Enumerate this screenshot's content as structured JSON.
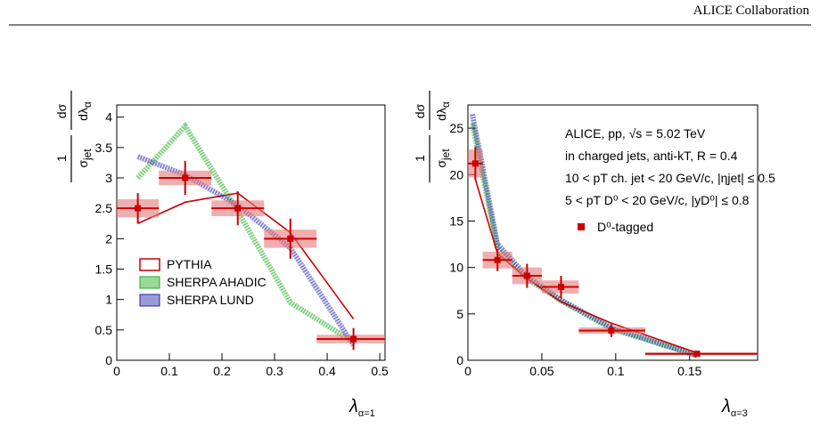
{
  "header": "ALICE Collaboration",
  "chart_data": [
    {
      "type": "line",
      "xlabel": "λ",
      "xlabel_sub": "α=1",
      "ylabel_parts": [
        "1",
        "σ",
        "jet",
        "dσ",
        "dλ",
        "α"
      ],
      "xlim": [
        0,
        0.51
      ],
      "ylim": [
        0,
        4.2
      ],
      "xticks": [
        0,
        0.1,
        0.2,
        0.3,
        0.4,
        0.5
      ],
      "yticks": [
        0,
        0.5,
        1,
        1.5,
        2,
        2.5,
        3,
        3.5,
        4
      ],
      "series": [
        {
          "name": "PYTHIA",
          "style": "line",
          "color": "#cc0000",
          "x": [
            0.04,
            0.13,
            0.23,
            0.33,
            0.45
          ],
          "values": [
            2.25,
            2.6,
            2.75,
            2.1,
            0.68
          ]
        },
        {
          "name": "SHERPA AHADIC",
          "style": "band",
          "color": "#22aa22",
          "x": [
            0.04,
            0.13,
            0.23,
            0.33,
            0.45
          ],
          "values": [
            3.0,
            3.85,
            2.45,
            0.95,
            0.3
          ]
        },
        {
          "name": "SHERPA LUND",
          "style": "band",
          "color": "#2222aa",
          "x": [
            0.04,
            0.13,
            0.23,
            0.33,
            0.45
          ],
          "values": [
            3.35,
            3.05,
            2.55,
            1.85,
            0.25
          ]
        },
        {
          "style": "points",
          "color": "#cc0000",
          "x": [
            0.04,
            0.13,
            0.23,
            0.33,
            0.45
          ],
          "values": [
            2.5,
            3.0,
            2.5,
            2.0,
            0.35
          ],
          "errors": [
            0.25,
            0.28,
            0.28,
            0.33,
            0.18
          ],
          "syst_errors": [
            0.15,
            0.12,
            0.13,
            0.15,
            0.07
          ],
          "bins": [
            0,
            0.08,
            0.18,
            0.28,
            0.38,
            0.51
          ]
        }
      ]
    },
    {
      "type": "line",
      "xlabel": "λ",
      "xlabel_sub": "α=3",
      "ylabel_parts": [
        "1",
        "σ",
        "jet",
        "dσ",
        "dλ",
        "α"
      ],
      "xlim": [
        0,
        0.196
      ],
      "ylim": [
        0,
        27.5
      ],
      "xticks": [
        0,
        0.05,
        0.1,
        0.15
      ],
      "yticks": [
        0,
        5,
        10,
        15,
        20,
        25
      ],
      "annotations": [
        "ALICE, pp, √s = 5.02 TeV",
        "in charged jets, anti-kT, R = 0.4",
        "10 < pT ch. jet < 20 GeV/c, |ηjet| ≤ 0.5",
        "5 < pT D⁰ < 20 GeV/c, |yD⁰| ≤ 0.8"
      ],
      "series": [
        {
          "style": "band",
          "color": "#22aa22",
          "x": [
            0.003,
            0.02,
            0.04,
            0.063,
            0.097,
            0.155
          ],
          "values": [
            25.5,
            12.0,
            8.8,
            6.4,
            3.4,
            0.5
          ]
        },
        {
          "style": "band",
          "color": "#2222aa",
          "x": [
            0.003,
            0.02,
            0.04,
            0.063,
            0.097,
            0.155
          ],
          "values": [
            26.5,
            12.5,
            9.0,
            6.5,
            3.5,
            0.5
          ]
        },
        {
          "style": "line",
          "color": "#cc0000",
          "x": [
            0.005,
            0.02,
            0.04,
            0.063,
            0.097,
            0.155
          ],
          "values": [
            19.5,
            11.5,
            8.8,
            6.3,
            4.0,
            0.8
          ]
        },
        {
          "name": "D⁰-tagged",
          "style": "points",
          "color": "#cc0000",
          "x": [
            0.005,
            0.02,
            0.04,
            0.063,
            0.097,
            0.155
          ],
          "values": [
            21.2,
            10.8,
            9.1,
            7.9,
            3.2,
            0.7
          ],
          "errors": [
            1.8,
            1.2,
            1.3,
            1.2,
            0.7,
            0.2
          ],
          "syst_errors": [
            1.5,
            0.9,
            0.9,
            0.7,
            0.35,
            0.15
          ],
          "bins": [
            0,
            0.01,
            0.03,
            0.05,
            0.075,
            0.12,
            0.196
          ]
        }
      ]
    }
  ]
}
